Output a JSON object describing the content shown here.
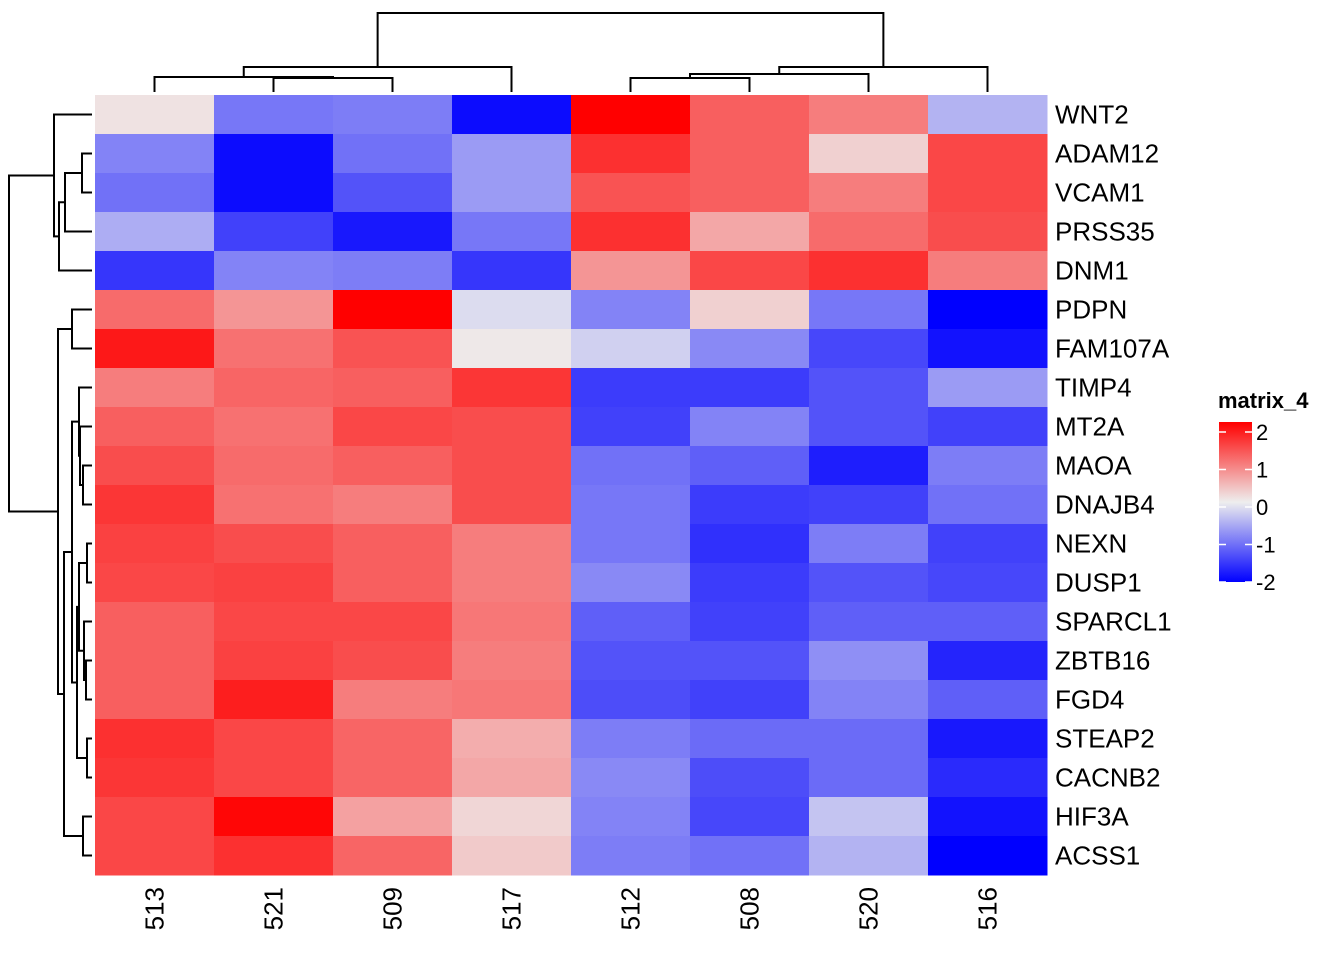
{
  "chart_data": {
    "type": "heatmap",
    "title": "",
    "xlabel": "",
    "ylabel": "",
    "columns": [
      "513",
      "521",
      "509",
      "517",
      "512",
      "508",
      "520",
      "516"
    ],
    "rows": [
      "WNT2",
      "ADAM12",
      "VCAM1",
      "PRSS35",
      "DNM1",
      "PDPN",
      "FAM107A",
      "TIMP4",
      "MT2A",
      "MAOA",
      "DNAJB4",
      "NEXN",
      "DUSP1",
      "SPARCL1",
      "ZBTB16",
      "FGD4",
      "STEAP2",
      "CACNB2",
      "HIF3A",
      "ACSS1"
    ],
    "values": [
      [
        0.1,
        -1.0,
        -0.95,
        -1.9,
        2.0,
        1.2,
        0.95,
        -0.5
      ],
      [
        -0.9,
        -1.9,
        -1.05,
        -0.7,
        1.6,
        1.2,
        0.25,
        1.4
      ],
      [
        -1.05,
        -1.9,
        -1.3,
        -0.7,
        1.3,
        1.2,
        0.95,
        1.4
      ],
      [
        -0.55,
        -1.45,
        -1.8,
        -1.0,
        1.6,
        0.6,
        1.1,
        1.35
      ],
      [
        -1.55,
        -0.9,
        -0.95,
        -1.55,
        0.75,
        1.4,
        1.6,
        0.95
      ],
      [
        1.1,
        0.75,
        2.0,
        -0.15,
        -0.9,
        0.25,
        -1.0,
        -2.0
      ],
      [
        1.8,
        1.05,
        1.3,
        0.05,
        -0.25,
        -0.85,
        -1.4,
        -1.85
      ],
      [
        0.95,
        1.15,
        1.2,
        1.55,
        -1.5,
        -1.5,
        -1.3,
        -0.7
      ],
      [
        1.2,
        1.05,
        1.4,
        1.35,
        -1.45,
        -0.9,
        -1.3,
        -1.45
      ],
      [
        1.35,
        1.1,
        1.2,
        1.35,
        -1.05,
        -1.2,
        -1.75,
        -0.95
      ],
      [
        1.55,
        1.05,
        0.95,
        1.35,
        -1.0,
        -1.5,
        -1.45,
        -1.05
      ],
      [
        1.45,
        1.35,
        1.2,
        0.95,
        -1.0,
        -1.6,
        -0.95,
        -1.45
      ],
      [
        1.4,
        1.45,
        1.2,
        0.95,
        -0.85,
        -1.5,
        -1.3,
        -1.4
      ],
      [
        1.2,
        1.4,
        1.4,
        1.0,
        -1.2,
        -1.45,
        -1.2,
        -1.2
      ],
      [
        1.2,
        1.45,
        1.35,
        0.95,
        -1.3,
        -1.3,
        -0.8,
        -1.7
      ],
      [
        1.2,
        1.75,
        0.95,
        1.0,
        -1.35,
        -1.45,
        -0.9,
        -1.2
      ],
      [
        1.6,
        1.4,
        1.15,
        0.55,
        -0.95,
        -1.1,
        -1.1,
        -1.8
      ],
      [
        1.55,
        1.4,
        1.15,
        0.6,
        -0.85,
        -1.35,
        -1.1,
        -1.65
      ],
      [
        1.4,
        1.95,
        0.65,
        0.2,
        -0.9,
        -1.4,
        -0.35,
        -1.85
      ],
      [
        1.4,
        1.6,
        1.15,
        0.3,
        -0.95,
        -1.05,
        -0.5,
        -2.0
      ]
    ],
    "color_scale": {
      "domain": [
        -2,
        0,
        2
      ],
      "colors": [
        "#0000FF",
        "#EEEEEE",
        "#FF0000"
      ]
    },
    "legend": {
      "title": "matrix_4",
      "ticks": [
        "2",
        "1",
        "0",
        "-1",
        "-2"
      ],
      "placement": "right"
    },
    "column_dendrogram": {
      "position": "top",
      "order": [
        "513",
        "521",
        "509",
        "517",
        "512",
        "508",
        "520",
        "516"
      ]
    },
    "row_dendrogram": {
      "position": "left",
      "order": [
        "WNT2",
        "ADAM12",
        "VCAM1",
        "PRSS35",
        "DNM1",
        "PDPN",
        "FAM107A",
        "TIMP4",
        "MT2A",
        "MAOA",
        "DNAJB4",
        "NEXN",
        "DUSP1",
        "SPARCL1",
        "ZBTB16",
        "FGD4",
        "STEAP2",
        "CACNB2",
        "HIF3A",
        "ACSS1"
      ]
    }
  }
}
